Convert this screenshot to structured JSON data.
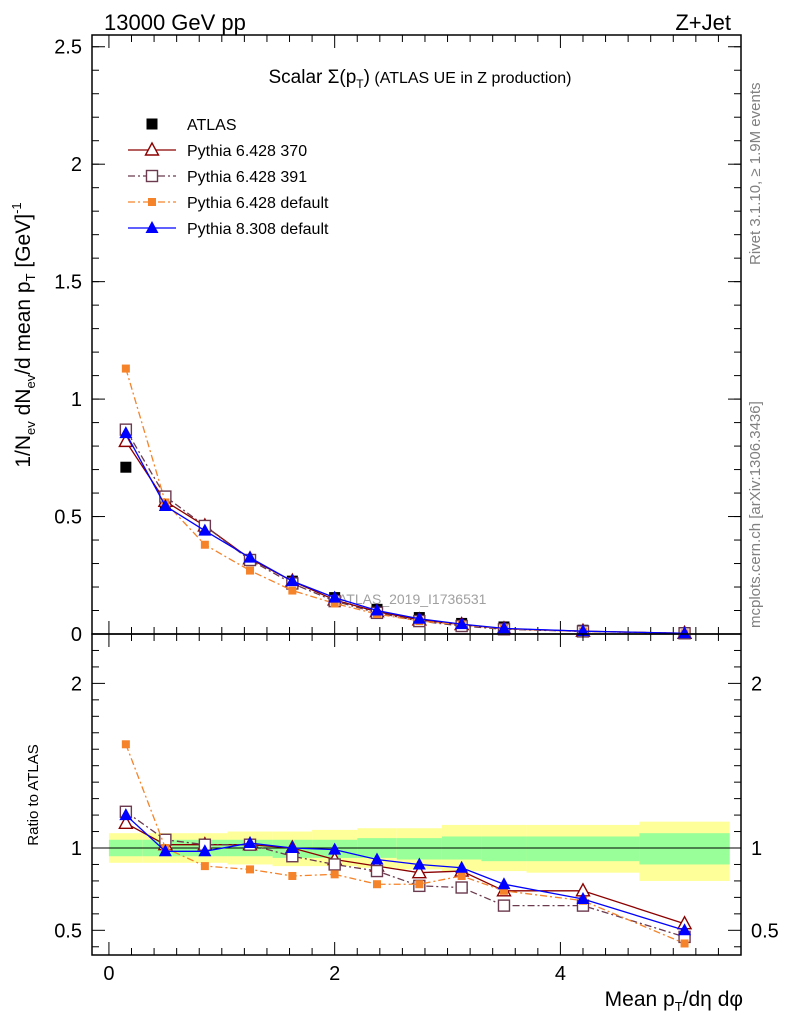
{
  "header": {
    "left": "13000 GeV pp",
    "right": "Z+Jet"
  },
  "side_labels": {
    "rivet": "Rivet 3.1.10, ≥ 1.9M events",
    "mcplots": "mcplots.cern.ch [arXiv:1306.3436]"
  },
  "watermark": "ATLAS_2019_I1736531",
  "chart_data": [
    {
      "type": "line",
      "title_parts": {
        "main": "Scalar Σ(p",
        "sub": "T",
        "close": ")",
        "rest": " (ATLAS UE in Z production)"
      },
      "ylabel_parts": {
        "a": "1/N",
        "a_sub": "ev",
        "b": " dN",
        "b_sub": "ev",
        "c": "/d mean p",
        "c_sub": "T",
        "d": " [GeV]",
        "d_sup": "-1"
      },
      "ylim": [
        0,
        2.55
      ],
      "yticks": [
        0,
        0.5,
        1,
        1.5,
        2,
        2.5
      ],
      "ytick_labels": [
        "0",
        "0.5",
        "1",
        "1.5",
        "2",
        "2.5"
      ],
      "xlim": [
        -0.15,
        5.6
      ],
      "x": [
        0.15,
        0.5,
        0.85,
        1.25,
        1.625,
        2.0,
        2.375,
        2.75,
        3.125,
        3.5,
        4.2,
        5.1
      ],
      "series": [
        {
          "name": "ATLAS",
          "color": "#000000",
          "marker": "square-filled",
          "line": "none",
          "values": [
            0.71,
            0.555,
            0.45,
            0.315,
            0.225,
            0.155,
            0.105,
            0.07,
            0.045,
            0.03,
            0.016,
            0.006
          ]
        },
        {
          "name": "Pythia 6.428 370",
          "color": "#8b0000",
          "marker": "triangle-open",
          "line": "solid",
          "values": [
            0.82,
            0.565,
            0.46,
            0.32,
            0.225,
            0.145,
            0.095,
            0.06,
            0.04,
            0.022,
            0.012,
            0.003
          ]
        },
        {
          "name": "Pythia 6.428 391",
          "color": "#6b3a4e",
          "marker": "square-open",
          "line": "dashdot",
          "values": [
            0.87,
            0.585,
            0.46,
            0.315,
            0.215,
            0.14,
            0.09,
            0.055,
            0.034,
            0.02,
            0.011,
            0.003
          ]
        },
        {
          "name": "Pythia 6.428 default",
          "color": "#f5832a",
          "marker": "square-small-filled",
          "line": "dashdot",
          "values": [
            1.13,
            0.56,
            0.38,
            0.27,
            0.185,
            0.13,
            0.085,
            0.055,
            0.04,
            0.022,
            0.011,
            0.0028
          ]
        },
        {
          "name": "Pythia 8.308 default",
          "color": "#0000ff",
          "marker": "triangle-filled",
          "line": "solid",
          "values": [
            0.855,
            0.545,
            0.44,
            0.325,
            0.225,
            0.155,
            0.1,
            0.065,
            0.042,
            0.024,
            0.012,
            0.003
          ]
        }
      ]
    },
    {
      "type": "line",
      "ylabel": "Ratio to ATLAS",
      "xlabel_parts": {
        "a": "Mean p",
        "a_sub": "T",
        "b": "/dη dφ"
      },
      "ylim": [
        0.35,
        2.3
      ],
      "yticks": [
        0.5,
        1,
        2
      ],
      "ytick_labels": [
        "0.5",
        "1",
        "2"
      ],
      "xticks": [
        0,
        2,
        4
      ],
      "xtick_labels": [
        "0",
        "2",
        "4"
      ],
      "bands": {
        "bin_edges": [
          0,
          0.3,
          0.7,
          1.05,
          1.45,
          1.8,
          2.2,
          2.55,
          2.95,
          3.3,
          3.7,
          4.7,
          5.5
        ],
        "yellow": [
          [
            0.91,
            1.09
          ],
          [
            0.91,
            1.09
          ],
          [
            0.91,
            1.09
          ],
          [
            0.9,
            1.1
          ],
          [
            0.89,
            1.1
          ],
          [
            0.89,
            1.11
          ],
          [
            0.88,
            1.12
          ],
          [
            0.87,
            1.12
          ],
          [
            0.86,
            1.14
          ],
          [
            0.86,
            1.14
          ],
          [
            0.85,
            1.14
          ],
          [
            0.8,
            1.16
          ]
        ],
        "green": [
          [
            0.95,
            1.05
          ],
          [
            0.95,
            1.05
          ],
          [
            0.95,
            1.05
          ],
          [
            0.95,
            1.05
          ],
          [
            0.94,
            1.05
          ],
          [
            0.94,
            1.05
          ],
          [
            0.94,
            1.06
          ],
          [
            0.93,
            1.06
          ],
          [
            0.93,
            1.07
          ],
          [
            0.92,
            1.07
          ],
          [
            0.92,
            1.07
          ],
          [
            0.9,
            1.09
          ]
        ]
      },
      "series": [
        {
          "name": "Pythia 6.428 370",
          "color": "#8b0000",
          "marker": "triangle-open",
          "line": "solid",
          "values": [
            1.15,
            1.02,
            1.02,
            1.02,
            1.0,
            0.93,
            0.89,
            0.85,
            0.86,
            0.74,
            0.74,
            0.54
          ]
        },
        {
          "name": "Pythia 6.428 391",
          "color": "#6b3a4e",
          "marker": "square-open",
          "line": "dashdot",
          "values": [
            1.22,
            1.05,
            1.02,
            1.02,
            0.95,
            0.9,
            0.86,
            0.77,
            0.76,
            0.65,
            0.65,
            0.46
          ]
        },
        {
          "name": "Pythia 6.428 default",
          "color": "#f5832a",
          "marker": "square-small-filled",
          "line": "dashdot",
          "values": [
            1.63,
            1.0,
            0.89,
            0.87,
            0.83,
            0.84,
            0.78,
            0.78,
            0.83,
            0.74,
            0.68,
            0.42
          ]
        },
        {
          "name": "Pythia 8.308 default",
          "color": "#0000ff",
          "marker": "triangle-filled",
          "line": "solid",
          "values": [
            1.2,
            0.98,
            0.98,
            1.03,
            1.0,
            0.99,
            0.93,
            0.9,
            0.88,
            0.78,
            0.69,
            0.5
          ]
        }
      ]
    }
  ]
}
